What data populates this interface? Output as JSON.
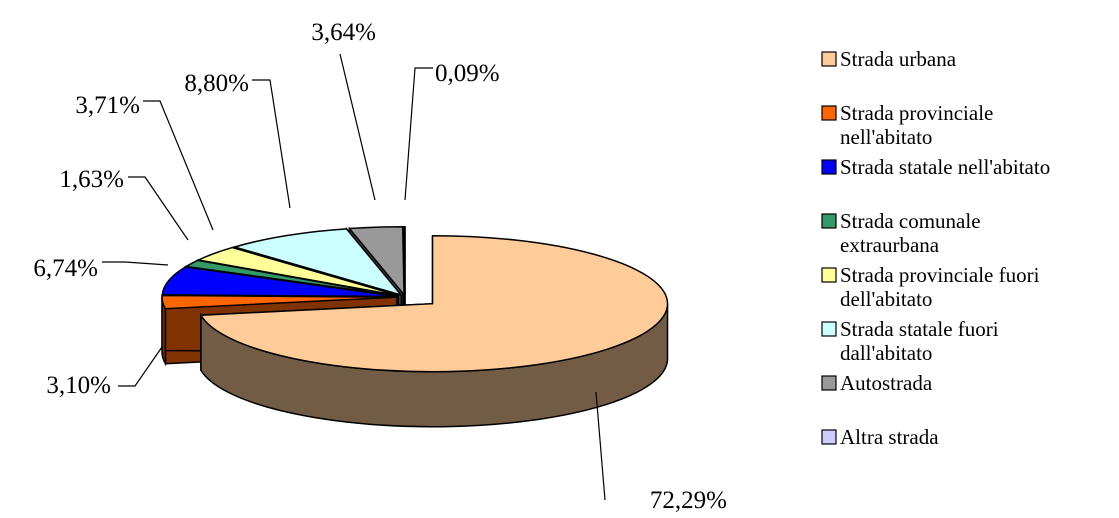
{
  "chart_data": {
    "type": "pie",
    "style": "3d-exploded",
    "legend_position": "right",
    "slices": [
      {
        "name": "Strada urbana",
        "value": 72.29,
        "label": "72,29%",
        "color": "#FFCC99",
        "exploded": true
      },
      {
        "name": "Strada provinciale nell'abitato",
        "value": 3.1,
        "label": "3,10%",
        "color": "#FF6600"
      },
      {
        "name": "Strada statale nell'abitato",
        "value": 6.74,
        "label": "6,74%",
        "color": "#0000FF"
      },
      {
        "name": "Strada comunale extraurbana",
        "value": 1.63,
        "label": "1,63%",
        "color": "#339966"
      },
      {
        "name": "Strada provinciale fuori dell'abitato",
        "value": 3.71,
        "label": "3,71%",
        "color": "#FFFF99"
      },
      {
        "name": "Strada statale fuori dall'abitato",
        "value": 8.8,
        "label": "8,80%",
        "color": "#CCFFFF"
      },
      {
        "name": "Autostrada",
        "value": 3.64,
        "label": "3,64%",
        "color": "#999999"
      },
      {
        "name": "Altra strada",
        "value": 0.09,
        "label": "0,09%",
        "color": "#CCCCFF"
      }
    ],
    "legend": [
      {
        "lines": [
          "Strada urbana"
        ]
      },
      {
        "lines": [
          "Strada provinciale",
          "nell'abitato"
        ]
      },
      {
        "lines": [
          "Strada statale nell'abitato"
        ]
      },
      {
        "lines": [
          "Strada comunale",
          "extraurbana"
        ]
      },
      {
        "lines": [
          "Strada provinciale fuori",
          "dell'abitato"
        ]
      },
      {
        "lines": [
          "Strada statale fuori",
          "dall'abitato"
        ]
      },
      {
        "lines": [
          "Autostrada"
        ]
      },
      {
        "lines": [
          "Altra strada"
        ]
      }
    ]
  }
}
